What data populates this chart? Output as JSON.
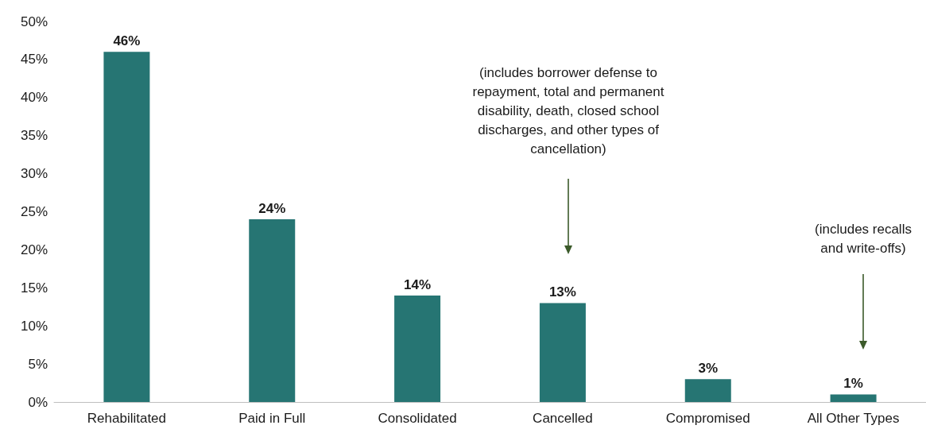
{
  "chart_data": {
    "type": "bar",
    "categories": [
      "Rehabilitated",
      "Paid in Full",
      "Consolidated",
      "Cancelled",
      "Compromised",
      "All Other Types"
    ],
    "values": [
      46,
      24,
      14,
      13,
      3,
      1
    ],
    "color": "#267573",
    "value_labels": [
      "46%",
      "24%",
      "14%",
      "13%",
      "3%",
      "1%"
    ],
    "ylim": [
      0,
      50
    ],
    "yticks": [
      {
        "value": 0,
        "label": "0%"
      },
      {
        "value": 5,
        "label": "5%"
      },
      {
        "value": 10,
        "label": "10%"
      },
      {
        "value": 15,
        "label": "15%"
      },
      {
        "value": 20,
        "label": "20%"
      },
      {
        "value": 25,
        "label": "25%"
      },
      {
        "value": 30,
        "label": "30%"
      },
      {
        "value": 35,
        "label": "35%"
      },
      {
        "value": 40,
        "label": "40%"
      },
      {
        "value": 45,
        "label": "45%"
      },
      {
        "value": 50,
        "label": "50%"
      }
    ],
    "grid": false,
    "annotations": [
      "(includes borrower defense to repayment, total and permanent disability, death, closed school discharges, and other types of cancellation)",
      "(includes recalls and write-offs)"
    ]
  }
}
